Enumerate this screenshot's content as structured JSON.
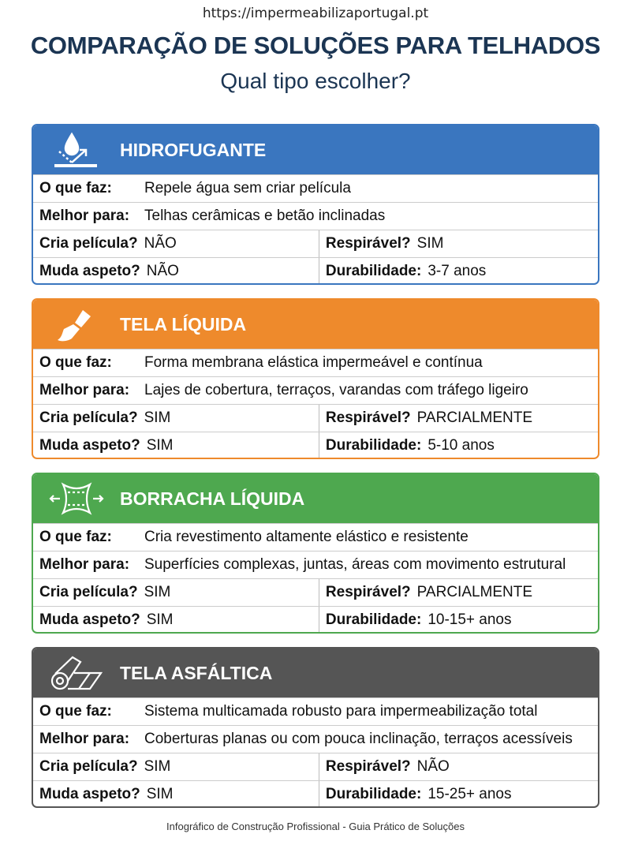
{
  "url": "https://impermeabilizaportugal.pt",
  "title": "COMPARAÇÃO DE SOLUÇÕES PARA TELHADOS",
  "subtitle": "Qual tipo escolher?",
  "labels": {
    "what": "O que faz:",
    "best": "Melhor para:",
    "film": "Cria película?",
    "breath": "Respirável?",
    "look": "Muda aspeto?",
    "dur": "Durabilidade:"
  },
  "cards": [
    {
      "name": "HIDROFUGANTE",
      "icon": "water-repel-icon",
      "color": "#3a76bf",
      "what": "Repele água sem criar película",
      "best": "Telhas cerâmicas e betão inclinadas",
      "film": "NÃO",
      "breath": "SIM",
      "look": "NÃO",
      "dur": "3-7 anos"
    },
    {
      "name": "TELA LÍQUIDA",
      "icon": "paintbrush-icon",
      "color": "#ee8a2c",
      "what": "Forma membrana elástica impermeável e contínua",
      "best": "Lajes de cobertura, terraços, varandas com tráfego ligeiro",
      "film": "SIM",
      "breath": "PARCIALMENTE",
      "look": "SIM",
      "dur": "5-10 anos"
    },
    {
      "name": "BORRACHA LÍQUIDA",
      "icon": "stretch-icon",
      "color": "#4ea84f",
      "what": "Cria revestimento altamente elástico e resistente",
      "best": "Superfícies complexas, juntas, áreas com movimento estrutural",
      "film": "SIM",
      "breath": "PARCIALMENTE",
      "look": "SIM",
      "dur": "10-15+ anos"
    },
    {
      "name": "TELA ASFÁLTICA",
      "icon": "roll-icon",
      "color": "#555555",
      "what": "Sistema multicamada robusto para impermeabilização total",
      "best": "Coberturas planas ou com pouca inclinação, terraços acessíveis",
      "film": "SIM",
      "breath": "NÃO",
      "look": "SIM",
      "dur": "15-25+ anos"
    }
  ],
  "footer": "Infográfico de Construção Profissional - Guia Prático de Soluções"
}
